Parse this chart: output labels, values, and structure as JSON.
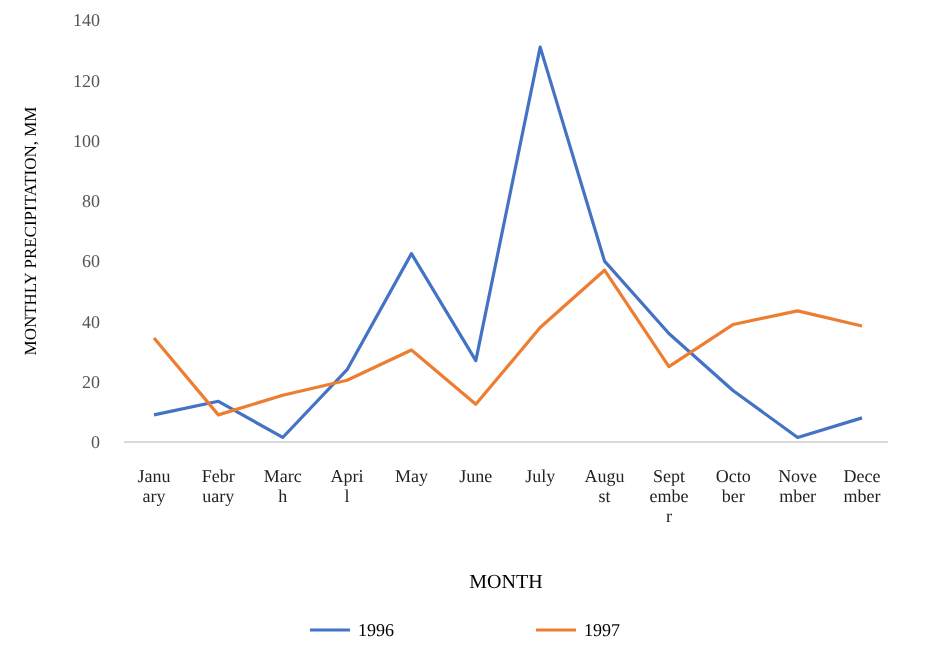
{
  "chart_data": {
    "type": "line",
    "xlabel": "MONTH",
    "ylabel": "MONTHLY PRECIPITATION, MM",
    "categories": [
      "January",
      "February",
      "March",
      "April",
      "May",
      "June",
      "July",
      "August",
      "September",
      "October",
      "November",
      "December"
    ],
    "series": [
      {
        "name": "1996",
        "color": "#4472c4",
        "values": [
          9,
          13.5,
          1.5,
          24,
          62.5,
          27,
          131,
          60,
          36,
          17,
          1.5,
          8
        ]
      },
      {
        "name": "1997",
        "color": "#ed7d31",
        "values": [
          34.5,
          9,
          15.5,
          20.5,
          30.5,
          12.5,
          38,
          57,
          25,
          39,
          43.5,
          38.5
        ]
      }
    ],
    "ylim": [
      0,
      140
    ],
    "yticks": [
      0,
      20,
      40,
      60,
      80,
      100,
      120,
      140
    ],
    "grid": false,
    "legend": "bottom",
    "marker": "none",
    "line_style": "solid"
  }
}
